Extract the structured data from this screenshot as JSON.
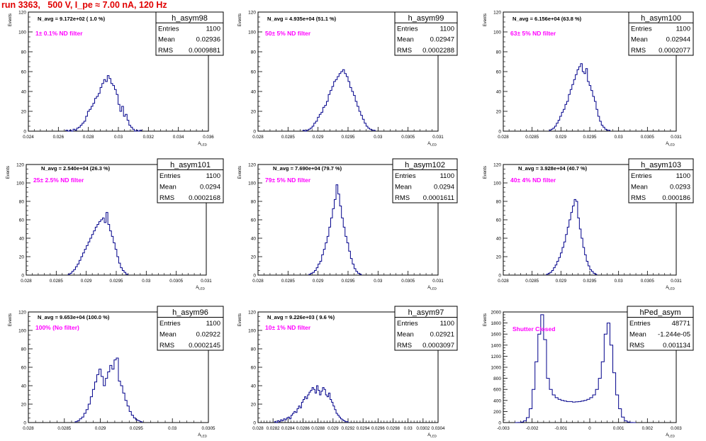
{
  "header": {
    "title": "run 3363,   500 V, I_pe ≈ 7.00 nA, 120 Hz"
  },
  "stats_labels": {
    "entries": "Entries",
    "mean": "Mean",
    "rms": "RMS"
  },
  "colors": {
    "histogram": "#00008b",
    "annotation": "#ff00ff",
    "title": "#e00000"
  },
  "chart_data": [
    {
      "type": "histogram",
      "name": "h_asym98",
      "nsum": "N_avg = 9.172e+02 ( 1.0 %)",
      "filter": "1± 0.1% ND filter",
      "entries": "1100",
      "mean": "0.02936",
      "rms": "0.0009881",
      "ylabel": "Events",
      "xlabel": "A_LED",
      "xlim": [
        0.024,
        0.036
      ],
      "ylim": [
        0,
        120
      ],
      "xticks": [
        0.024,
        0.026,
        0.028,
        0.03,
        0.032,
        0.034,
        0.036
      ],
      "xtick_labels": [
        "0.024",
        "0.026",
        "0.028",
        "0.03",
        "0.032",
        "0.034",
        "0.036"
      ],
      "yticks": [
        0,
        20,
        40,
        60,
        80,
        100,
        120
      ],
      "ytick_labels": [
        "0",
        "20",
        "40",
        "60",
        "80",
        "100",
        "120"
      ],
      "hist": {
        "x0": 0.0265,
        "width": 0.00012,
        "values": [
          1,
          0,
          1,
          0,
          2,
          1,
          3,
          4,
          6,
          8,
          10,
          15,
          20,
          22,
          25,
          28,
          33,
          35,
          38,
          44,
          48,
          52,
          50,
          56,
          53,
          48,
          46,
          42,
          37,
          27,
          20,
          25,
          15,
          17,
          11,
          6,
          4,
          2,
          0,
          1,
          0,
          1
        ]
      }
    },
    {
      "type": "histogram",
      "name": "h_asym99",
      "nsum": "N_avg = 4.935e+04 (51.1 %)",
      "filter": "50± 5% ND filter",
      "entries": "1100",
      "mean": "0.02947",
      "rms": "0.0002288",
      "ylabel": "Events",
      "xlabel": "A_LED",
      "xlim": [
        0.028,
        0.031
      ],
      "ylim": [
        0,
        120
      ],
      "xticks": [
        0.028,
        0.0285,
        0.029,
        0.0295,
        0.03,
        0.0305,
        0.031
      ],
      "xtick_labels": [
        "0.028",
        "0.0285",
        "0.029",
        "0.0295",
        "0.03",
        "0.0305",
        "0.031"
      ],
      "yticks": [
        0,
        20,
        40,
        60,
        80,
        100,
        120
      ],
      "ytick_labels": [
        "0",
        "20",
        "40",
        "60",
        "80",
        "100",
        "120"
      ],
      "hist": {
        "x0": 0.02875,
        "width": 3e-05,
        "values": [
          1,
          0,
          1,
          2,
          3,
          5,
          8,
          10,
          14,
          17,
          19,
          24,
          26,
          30,
          37,
          41,
          45,
          50,
          52,
          55,
          58,
          60,
          62,
          58,
          55,
          50,
          44,
          40,
          36,
          30,
          25,
          20,
          16,
          12,
          8,
          5,
          3,
          2,
          1,
          1
        ]
      }
    },
    {
      "type": "histogram",
      "name": "h_asym100",
      "nsum": "N_avg = 6.156e+04 (63.8 %)",
      "filter": "63± 5% ND filter",
      "entries": "1100",
      "mean": "0.02944",
      "rms": "0.0002077",
      "ylabel": "Events",
      "xlabel": "A_LED",
      "xlim": [
        0.028,
        0.031
      ],
      "ylim": [
        0,
        120
      ],
      "xticks": [
        0.028,
        0.0285,
        0.029,
        0.0295,
        0.03,
        0.0305,
        0.031
      ],
      "xtick_labels": [
        "0.028",
        "0.0285",
        "0.029",
        "0.0295",
        "0.03",
        "0.0305",
        "0.031"
      ],
      "yticks": [
        0,
        20,
        40,
        60,
        80,
        100,
        120
      ],
      "ytick_labels": [
        "0",
        "20",
        "40",
        "60",
        "80",
        "100",
        "120"
      ],
      "hist": {
        "x0": 0.0288,
        "width": 3e-05,
        "values": [
          1,
          2,
          3,
          5,
          8,
          11,
          15,
          19,
          22,
          27,
          30,
          37,
          42,
          47,
          52,
          57,
          62,
          65,
          68,
          60,
          58,
          63,
          50,
          46,
          41,
          35,
          30,
          22,
          15,
          10,
          6,
          4,
          2,
          1,
          1
        ]
      }
    },
    {
      "type": "histogram",
      "name": "h_asym101",
      "nsum": "N_avg = 2.540e+04 (26.3 %)",
      "filter": "25± 2.5% ND filter",
      "entries": "1100",
      "mean": "0.0294",
      "rms": "0.0002168",
      "ylabel": "Events",
      "xlabel": "A_LED",
      "xlim": [
        0.028,
        0.031
      ],
      "ylim": [
        0,
        120
      ],
      "xticks": [
        0.028,
        0.0285,
        0.029,
        0.0295,
        0.03,
        0.0305,
        0.031
      ],
      "xtick_labels": [
        "0.028",
        "0.0285",
        "0.029",
        "0.0295",
        "0.03",
        "0.0305",
        "0.031"
      ],
      "yticks": [
        0,
        20,
        40,
        60,
        80,
        100,
        120
      ],
      "ytick_labels": [
        "0",
        "20",
        "40",
        "60",
        "80",
        "100",
        "120"
      ],
      "hist": {
        "x0": 0.0287,
        "width": 3e-05,
        "values": [
          1,
          2,
          4,
          6,
          9,
          12,
          16,
          20,
          24,
          28,
          32,
          36,
          40,
          44,
          48,
          52,
          55,
          58,
          60,
          62,
          57,
          68,
          55,
          48,
          42,
          35,
          28,
          20,
          13,
          8,
          5,
          3,
          1
        ]
      }
    },
    {
      "type": "histogram",
      "name": "h_asym102",
      "nsum": "N_avg = 7.690e+04 (79.7 %)",
      "filter": "79± 5% ND filter",
      "entries": "1100",
      "mean": "0.0294",
      "rms": "0.0001611",
      "ylabel": "Events",
      "xlabel": "A_LED",
      "xlim": [
        0.028,
        0.031
      ],
      "ylim": [
        0,
        120
      ],
      "xticks": [
        0.028,
        0.0285,
        0.029,
        0.0295,
        0.03,
        0.0305,
        0.031
      ],
      "xtick_labels": [
        "0.028",
        "0.0285",
        "0.029",
        "0.0295",
        "0.03",
        "0.0305",
        "0.031"
      ],
      "yticks": [
        0,
        20,
        40,
        60,
        80,
        100,
        120
      ],
      "ytick_labels": [
        "0",
        "20",
        "40",
        "60",
        "80",
        "100",
        "120"
      ],
      "hist": {
        "x0": 0.02885,
        "width": 3e-05,
        "values": [
          1,
          2,
          3,
          5,
          8,
          12,
          15,
          22,
          28,
          35,
          42,
          52,
          62,
          72,
          82,
          98,
          88,
          75,
          62,
          52,
          42,
          35,
          26,
          18,
          12,
          7,
          4,
          2,
          1
        ]
      }
    },
    {
      "type": "histogram",
      "name": "h_asym103",
      "nsum": "N_avg = 3.928e+04 (40.7 %)",
      "filter": "40± 4% ND filter",
      "entries": "1100",
      "mean": "0.0293",
      "rms": "0.000186",
      "ylabel": "Events",
      "xlabel": "A_LED",
      "xlim": [
        0.028,
        0.031
      ],
      "ylim": [
        0,
        120
      ],
      "xticks": [
        0.028,
        0.0285,
        0.029,
        0.0295,
        0.03,
        0.0305,
        0.031
      ],
      "xtick_labels": [
        "0.028",
        "0.0285",
        "0.029",
        "0.0295",
        "0.03",
        "0.0305",
        "0.031"
      ],
      "yticks": [
        0,
        20,
        40,
        60,
        80,
        100,
        120
      ],
      "ytick_labels": [
        "0",
        "20",
        "40",
        "60",
        "80",
        "100",
        "120"
      ],
      "hist": {
        "x0": 0.02875,
        "width": 3e-05,
        "values": [
          1,
          2,
          3,
          5,
          8,
          11,
          15,
          19,
          24,
          30,
          36,
          44,
          52,
          60,
          68,
          75,
          82,
          80,
          62,
          50,
          40,
          30,
          22,
          15,
          10,
          6,
          4,
          2,
          1
        ]
      }
    },
    {
      "type": "histogram",
      "name": "h_asym96",
      "nsum": "N_avg = 9.653e+04 (100.0 %)",
      "filter": "100% (No filter)",
      "entries": "1100",
      "mean": "0.02922",
      "rms": "0.0002145",
      "ylabel": "Events",
      "xlabel": "A_LED",
      "xlim": [
        0.028,
        0.0305
      ],
      "ylim": [
        0,
        120
      ],
      "xticks": [
        0.028,
        0.0285,
        0.029,
        0.0295,
        0.03,
        0.0305
      ],
      "xtick_labels": [
        "0.028",
        "0.0285",
        "0.029",
        "0.0295",
        "0.03",
        "0.0305"
      ],
      "yticks": [
        0,
        20,
        40,
        60,
        80,
        100,
        120
      ],
      "ytick_labels": [
        "0",
        "20",
        "40",
        "60",
        "80",
        "100",
        "120"
      ],
      "hist": {
        "x0": 0.02865,
        "width": 3e-05,
        "values": [
          1,
          2,
          4,
          6,
          10,
          14,
          20,
          28,
          36,
          44,
          52,
          58,
          50,
          40,
          48,
          55,
          62,
          58,
          68,
          70,
          45,
          40,
          32,
          24,
          18,
          12,
          8,
          5,
          3,
          2,
          1
        ]
      }
    },
    {
      "type": "histogram",
      "name": "h_asym97",
      "nsum": "N_avg = 9.226e+03 ( 9.6 %)",
      "filter": "10± 1% ND filter",
      "entries": "1100",
      "mean": "0.02921",
      "rms": "0.0003097",
      "ylabel": "Events",
      "xlabel": "A_LED",
      "xlim": [
        0.028,
        0.0304
      ],
      "ylim": [
        0,
        120
      ],
      "xticks": [
        0.028,
        0.0282,
        0.0284,
        0.0286,
        0.0288,
        0.029,
        0.0292,
        0.0294,
        0.0296,
        0.0298,
        0.03,
        0.0302,
        0.0304
      ],
      "xtick_labels": [
        "0.028",
        "0.0282",
        "0.0284",
        "0.0286",
        "0.0288",
        "0.029",
        "0.0292",
        "0.0294",
        "0.0296",
        "0.0298",
        "0.03",
        "0.0302",
        "0.0304"
      ],
      "yticks": [
        0,
        20,
        40,
        60,
        80,
        100,
        120
      ],
      "ytick_labels": [
        "0",
        "20",
        "40",
        "60",
        "80",
        "100",
        "120"
      ],
      "hist": {
        "x0": 0.02822,
        "width": 2e-05,
        "values": [
          1,
          0,
          2,
          1,
          3,
          2,
          4,
          3,
          5,
          6,
          4,
          8,
          10,
          12,
          11,
          15,
          18,
          16,
          22,
          25,
          28,
          26,
          30,
          33,
          35,
          38,
          36,
          32,
          40,
          35,
          30,
          34,
          38,
          36,
          30,
          28,
          32,
          25,
          22,
          18,
          14,
          10,
          8,
          6,
          4,
          3,
          2,
          1,
          1
        ]
      }
    },
    {
      "type": "histogram",
      "name": "hPed_asym",
      "nsum": "",
      "filter": "Shutter Closed",
      "entries": "48771",
      "mean": "-1.244e-05",
      "rms": "0.001134",
      "ylabel": "Events",
      "xlabel": "A_LED",
      "xlim": [
        -0.003,
        0.003
      ],
      "ylim": [
        0,
        2000
      ],
      "xticks": [
        -0.003,
        -0.002,
        -0.001,
        0,
        0.001,
        0.002,
        0.003
      ],
      "xtick_labels": [
        "-0.003",
        "-0.002",
        "-0.001",
        "0",
        "0.001",
        "0.002",
        "0.003"
      ],
      "yticks": [
        0,
        200,
        400,
        600,
        800,
        1000,
        1200,
        1400,
        1600,
        1800,
        2000
      ],
      "ytick_labels": [
        "0",
        "200",
        "400",
        "600",
        "800",
        "1000",
        "1200",
        "1400",
        "1600",
        "1800",
        "2000"
      ],
      "hist": {
        "x0": -0.0026,
        "width": 0.0001,
        "values": [
          0,
          2,
          10,
          30,
          90,
          250,
          600,
          1100,
          1600,
          1950,
          1500,
          800,
          600,
          500,
          450,
          420,
          400,
          390,
          380,
          380,
          370,
          375,
          380,
          390,
          400,
          420,
          450,
          500,
          600,
          800,
          1100,
          1600,
          1800,
          1400,
          900,
          500,
          250,
          100,
          30,
          10,
          2,
          0
        ]
      }
    }
  ]
}
